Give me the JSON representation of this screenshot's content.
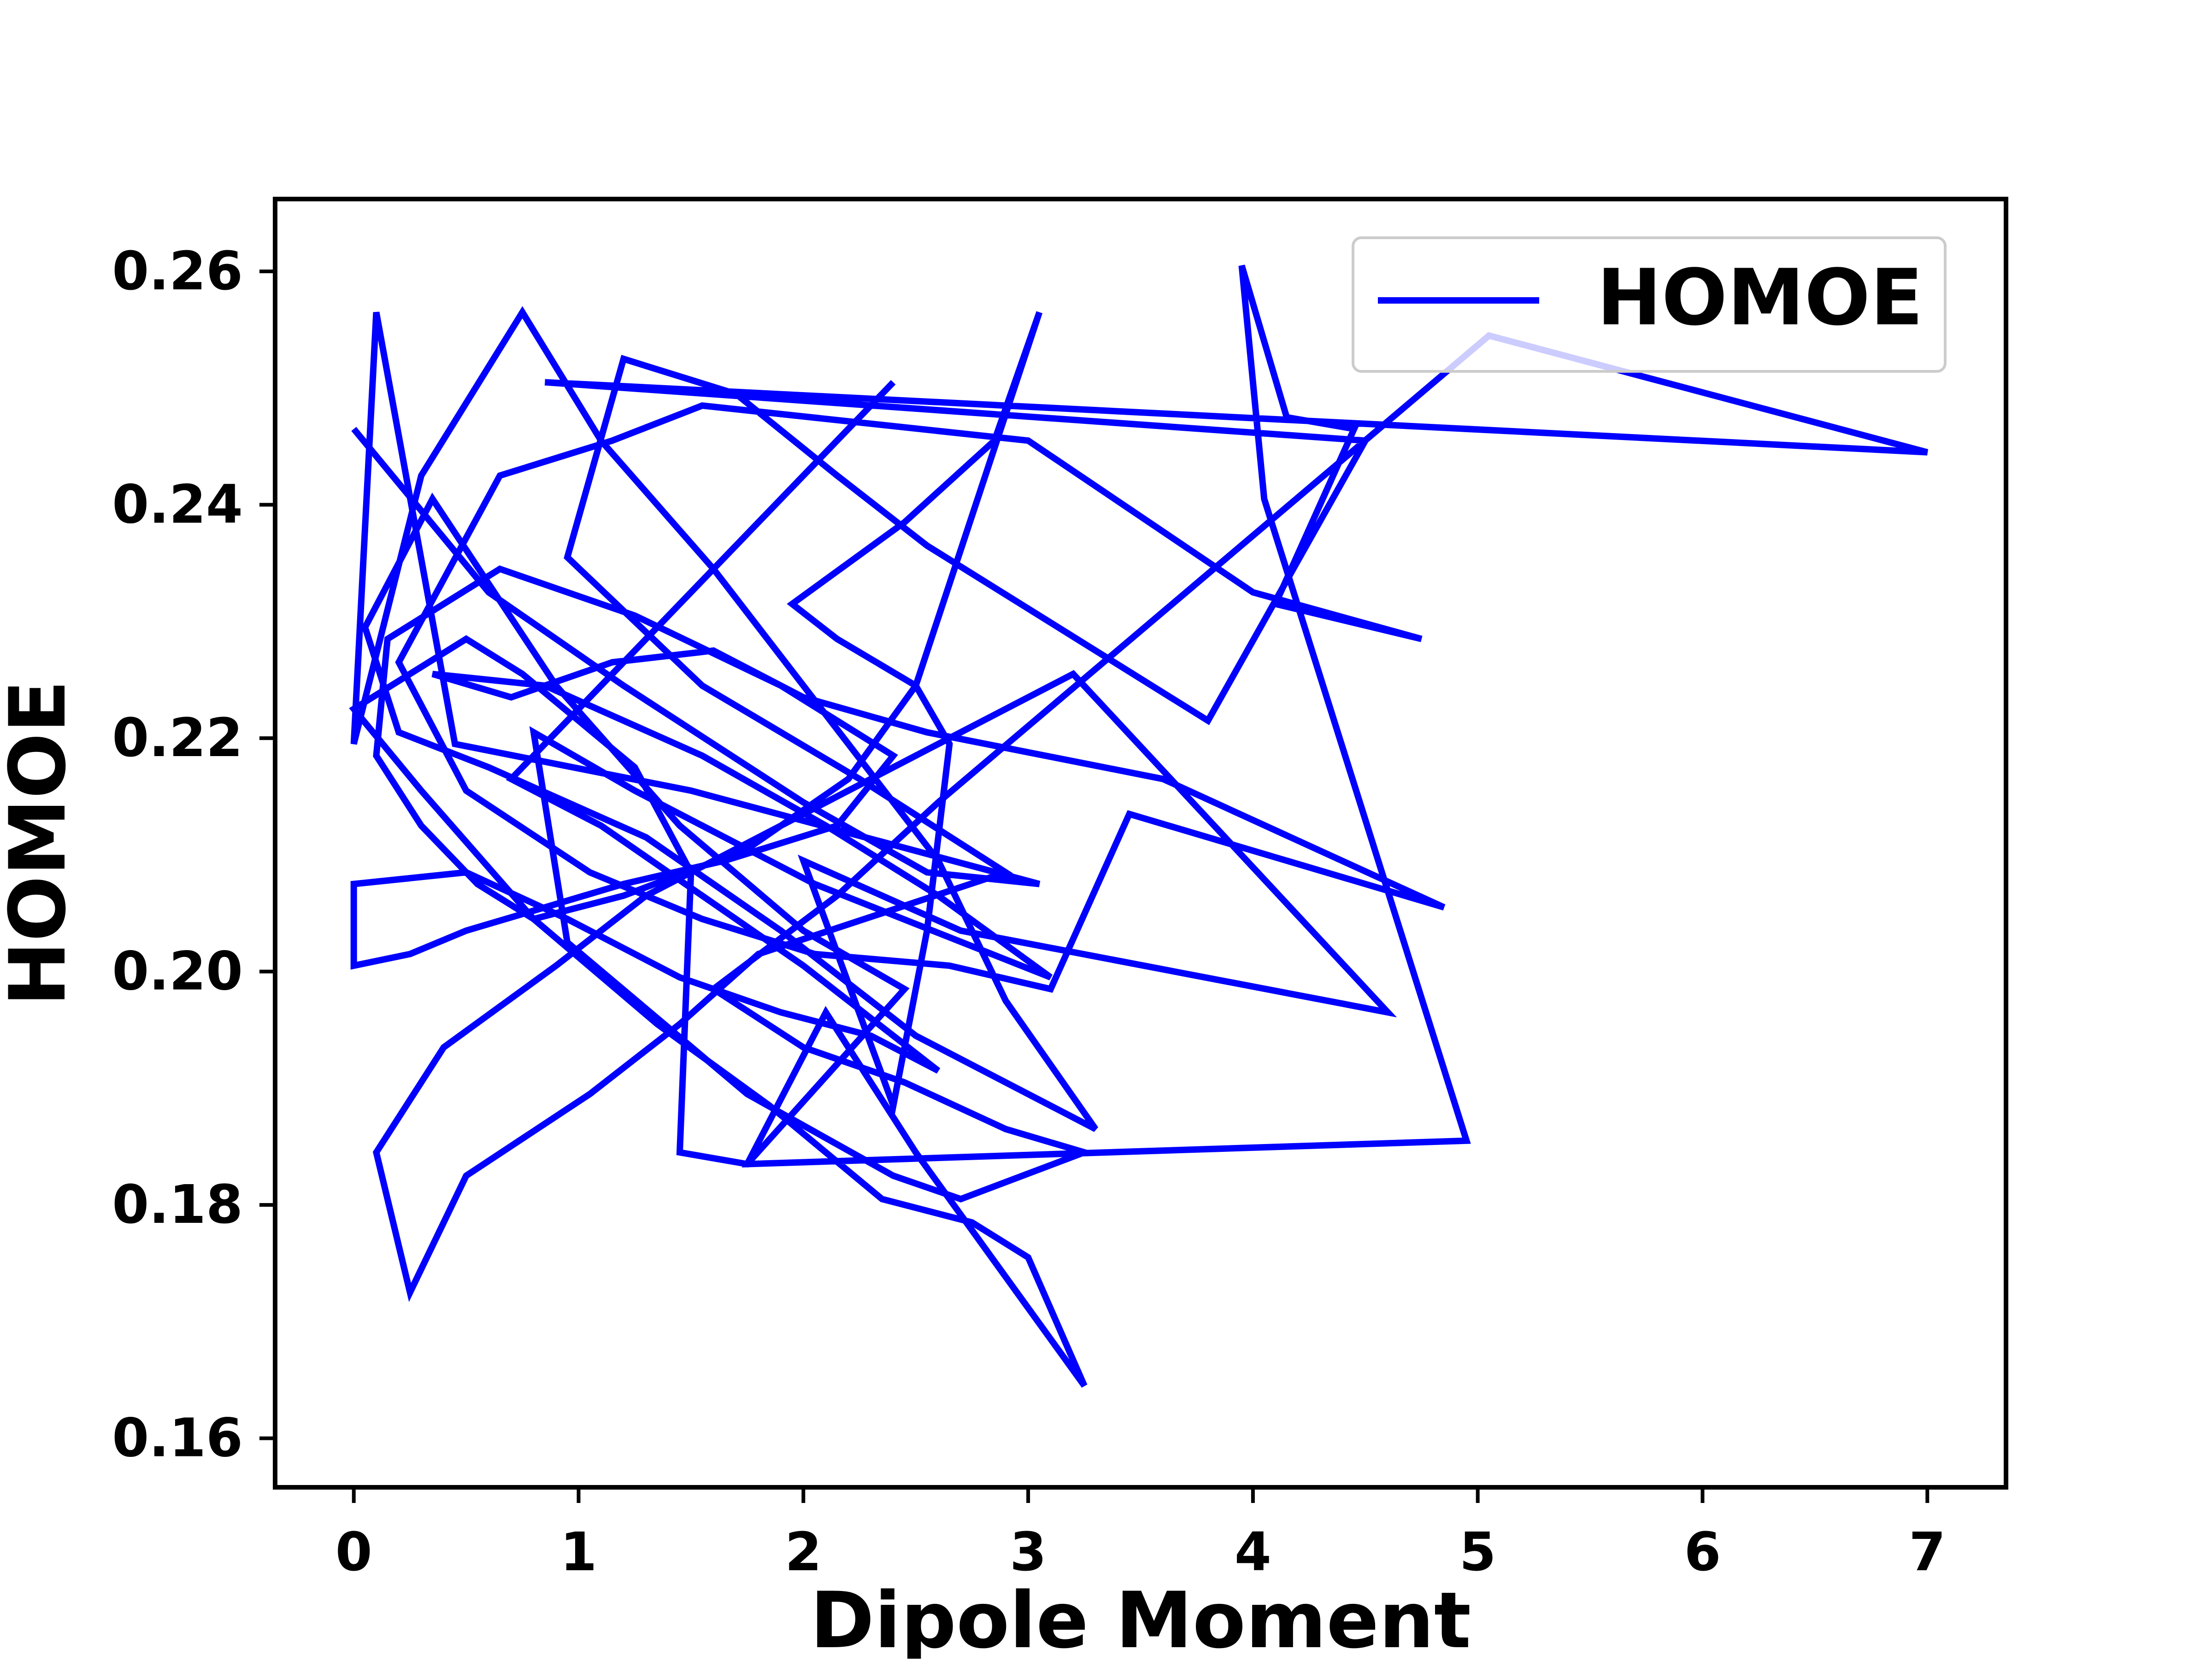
{
  "chart_data": {
    "type": "line",
    "xlabel": "Dipole Moment",
    "ylabel": "HOMOE",
    "xlim": [
      -0.35,
      7.35
    ],
    "ylim": [
      0.1558,
      0.2662
    ],
    "xticks": [
      0,
      1,
      2,
      3,
      4,
      5,
      6,
      7
    ],
    "yticks": [
      0.16,
      0.18,
      0.2,
      0.22,
      0.24,
      0.26
    ],
    "xtick_labels": [
      "0",
      "1",
      "2",
      "3",
      "4",
      "5",
      "6",
      "7"
    ],
    "ytick_labels": [
      "0.16",
      "0.18",
      "0.20",
      "0.22",
      "0.24",
      "0.26"
    ],
    "grid": false,
    "legend_position": "top-right",
    "line_color": "#0000ff",
    "series": [
      {
        "name": "HOMOE",
        "x": [
          0.0,
          0.6,
          1.2,
          2.0,
          2.55,
          3.05,
          1.5,
          0.45,
          0.1,
          0.0,
          0.3,
          0.75,
          1.1,
          1.6,
          2.2,
          2.6,
          2.9,
          3.3,
          2.5,
          1.9,
          1.3,
          0.6,
          0.2,
          0.05,
          0.35,
          0.9,
          1.45,
          2.0,
          2.45,
          1.75,
          1.45,
          1.5,
          1.25,
          0.75,
          0.5,
          0.0,
          0.3,
          0.8,
          1.35,
          1.85,
          2.35,
          2.75,
          3.0,
          3.25,
          2.95,
          2.5,
          2.1,
          1.75,
          4.95,
          4.05,
          3.95,
          4.15,
          4.45,
          4.1,
          4.75,
          4.0,
          3.0,
          1.55,
          1.15,
          0.65,
          0.2,
          0.5,
          1.05,
          1.55,
          2.05,
          2.65,
          3.1,
          3.45,
          4.85,
          3.6,
          2.55,
          2.0,
          1.6,
          1.15,
          0.7,
          0.35,
          0.85,
          1.55,
          2.1,
          2.6,
          3.1,
          2.05,
          1.25,
          0.8,
          0.95,
          1.75,
          2.4,
          2.7,
          3.25,
          2.9,
          2.45,
          2.0,
          1.6,
          2.15,
          2.6,
          5.05,
          7.0,
          0.85,
          4.5,
          3.8,
          2.55,
          2.15,
          1.7,
          1.2,
          0.95,
          1.55,
          2.25,
          2.9,
          1.8,
          1.45,
          1.05,
          0.5,
          0.25,
          0.1,
          0.4,
          0.9,
          1.3,
          1.7,
          2.2,
          2.7,
          3.2,
          4.6,
          2.7,
          2.0,
          2.4,
          2.55,
          2.65,
          2.5,
          2.15,
          1.95,
          2.45,
          2.85,
          3.05,
          2.5,
          2.2,
          1.75,
          1.2,
          0.8,
          0.55,
          0.3,
          0.1,
          0.15,
          0.65,
          1.25,
          1.9,
          2.4,
          2.15,
          1.65,
          1.2,
          0.85,
          0.5,
          0.25,
          0.0,
          0.0,
          0.5,
          0.95,
          1.45,
          1.9,
          2.3,
          2.6,
          2.0,
          1.55,
          1.1,
          0.7,
          2.4
        ],
        "y": [
          0.2465,
          0.2325,
          0.2245,
          0.2145,
          0.2085,
          0.2075,
          0.2155,
          0.2195,
          0.2565,
          0.2195,
          0.2425,
          0.2565,
          0.2455,
          0.2345,
          0.2195,
          0.2095,
          0.1975,
          0.1865,
          0.1945,
          0.2035,
          0.2115,
          0.2175,
          0.2205,
          0.2295,
          0.2405,
          0.2245,
          0.2125,
          0.2035,
          0.1985,
          0.1835,
          0.1845,
          0.2085,
          0.2175,
          0.2255,
          0.2285,
          0.2225,
          0.2155,
          0.2045,
          0.1955,
          0.1885,
          0.1805,
          0.1785,
          0.1755,
          0.1645,
          0.1725,
          0.1845,
          0.1965,
          0.1835,
          0.1855,
          0.2405,
          0.2605,
          0.2475,
          0.2465,
          0.2315,
          0.2285,
          0.2325,
          0.2455,
          0.2485,
          0.2455,
          0.2425,
          0.2265,
          0.2155,
          0.2085,
          0.2045,
          0.2015,
          0.2005,
          0.1985,
          0.2135,
          0.2055,
          0.2165,
          0.2205,
          0.2235,
          0.2275,
          0.2265,
          0.2235,
          0.2255,
          0.2245,
          0.2185,
          0.2125,
          0.2065,
          0.1995,
          0.2075,
          0.2155,
          0.2205,
          0.2025,
          0.1895,
          0.1825,
          0.1805,
          0.1845,
          0.1865,
          0.1905,
          0.1935,
          0.1985,
          0.2065,
          0.2145,
          0.2545,
          0.2445,
          0.2505,
          0.2455,
          0.2215,
          0.2365,
          0.2425,
          0.2495,
          0.2525,
          0.2355,
          0.2245,
          0.2165,
          0.2085,
          0.2015,
          0.1955,
          0.1895,
          0.1825,
          0.1725,
          0.1845,
          0.1935,
          0.2005,
          0.2065,
          0.2105,
          0.2155,
          0.2205,
          0.2255,
          0.1965,
          0.2035,
          0.2095,
          0.1885,
          0.2035,
          0.2195,
          0.2245,
          0.2285,
          0.2315,
          0.2385,
          0.2455,
          0.2565,
          0.2245,
          0.2165,
          0.2105,
          0.2065,
          0.2045,
          0.2075,
          0.2125,
          0.2185,
          0.2285,
          0.2345,
          0.2305,
          0.2245,
          0.2185,
          0.2125,
          0.2095,
          0.2075,
          0.2055,
          0.2035,
          0.2015,
          0.2005,
          0.2075,
          0.2085,
          0.2045,
          0.1995,
          0.1965,
          0.1945,
          0.1915,
          0.2005,
          0.2065,
          0.2125,
          0.2165,
          0.2505
        ]
      }
    ]
  }
}
